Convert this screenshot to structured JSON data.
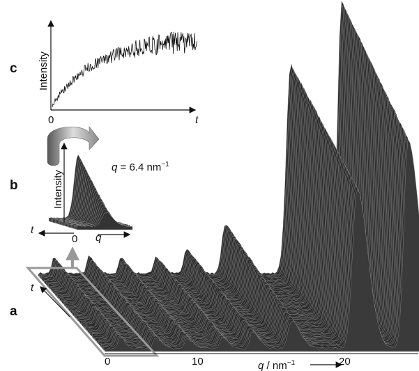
{
  "panel_a": {
    "label": "a",
    "x_ticks": [
      "0",
      "10",
      "20"
    ],
    "x_label": {
      "symbol": "q",
      "unit": " / nm",
      "exponent": "−1"
    },
    "t_label": "t"
  },
  "panel_b": {
    "label": "b",
    "y_label": "Intensity",
    "t_label": "t",
    "origin": "0",
    "q_label": "q",
    "annotation": {
      "symbol": "q",
      "text": " = 6.4 nm",
      "exponent": "−1"
    }
  },
  "panel_c": {
    "label": "c",
    "y_label": "Intensity",
    "origin": "0",
    "t_label": "t"
  }
}
